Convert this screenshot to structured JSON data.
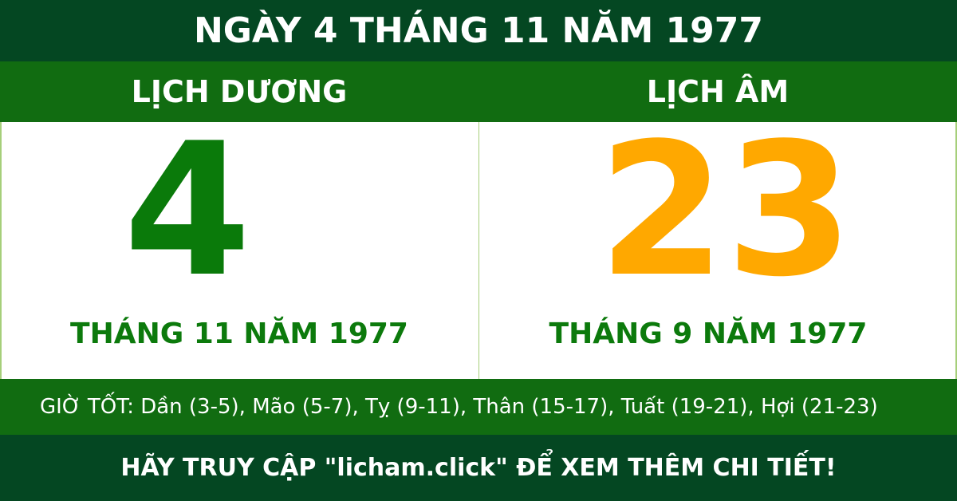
{
  "title": "NGÀY 4 THÁNG 11 NĂM 1977",
  "solar": {
    "heading": "LỊCH DƯƠNG",
    "day": "4",
    "month_year": "THÁNG 11 NĂM 1977"
  },
  "lunar": {
    "heading": "LỊCH ÂM",
    "day": "23",
    "month_year": "THÁNG 9 NĂM 1977"
  },
  "good_hours": "GIỜ TỐT: Dần (3-5), Mão (5-7), Tỵ (9-11), Thân (15-17), Tuất (19-21), Hợi (21-23)",
  "footer": "HÃY TRUY CẬP \"licham.click\" ĐỂ XEM THÊM CHI TIẾT!",
  "colors": {
    "dark_green": "#044722",
    "green": "#116c11",
    "solar_day": "#0a7a0a",
    "lunar_day": "#ffa800"
  }
}
